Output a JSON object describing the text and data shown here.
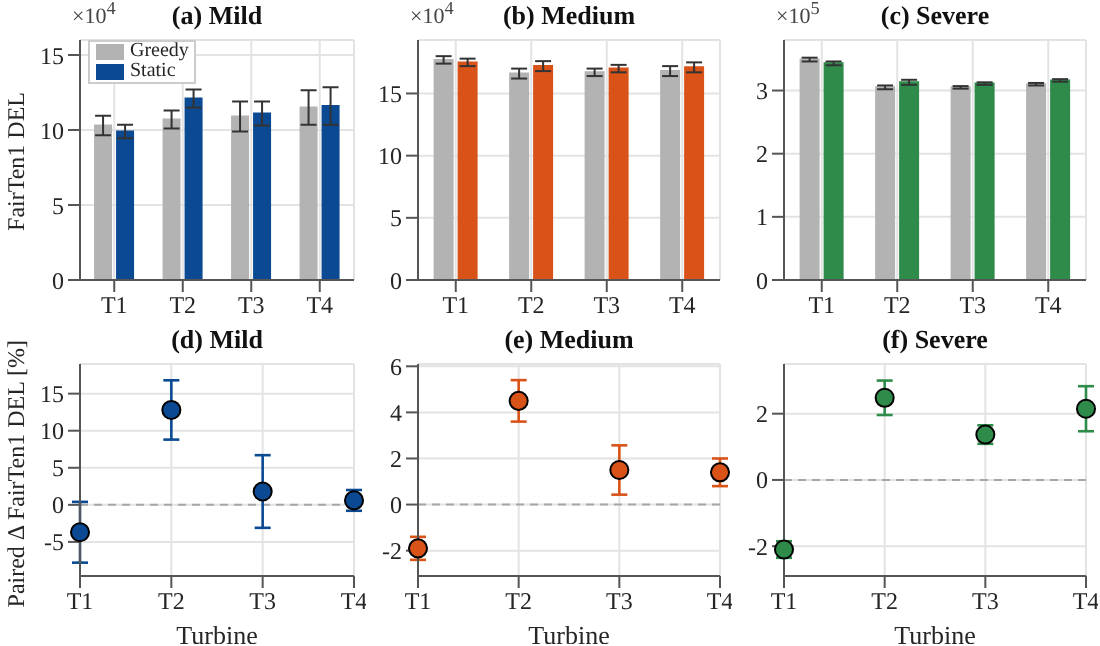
{
  "chart_data": [
    {
      "type": "bar",
      "title": "(a) Mild",
      "ylabel": "FairTen1 DEL",
      "annotations": [
        "×10$^{4}$"
      ],
      "categories": [
        "T1",
        "T2",
        "T3",
        "T4"
      ],
      "ylim": [
        0,
        16
      ],
      "yticks": [
        0,
        5,
        10,
        15
      ],
      "grid": true,
      "legend": "top left",
      "series": [
        {
          "name": "Greedy",
          "color": "#b3b3b3",
          "values": [
            10.3,
            10.7,
            10.9,
            11.5
          ],
          "errors": [
            0.65,
            0.6,
            1.0,
            1.15
          ]
        },
        {
          "name": "Static",
          "color": "#0b4a93",
          "values": [
            9.9,
            12.1,
            11.1,
            11.6
          ],
          "errors": [
            0.45,
            0.6,
            0.8,
            1.25
          ]
        }
      ]
    },
    {
      "type": "bar",
      "title": "(b) Medium",
      "annotations": [
        "×10$^{4}$"
      ],
      "categories": [
        "T1",
        "T2",
        "T3",
        "T4"
      ],
      "ylim": [
        0,
        19.3
      ],
      "yticks": [
        0,
        5,
        10,
        15
      ],
      "grid": true,
      "series": [
        {
          "color": "#b3b3b3",
          "values": [
            17.7,
            16.6,
            16.7,
            16.8
          ],
          "errors": [
            0.3,
            0.4,
            0.3,
            0.4
          ]
        },
        {
          "color": "#d95319",
          "values": [
            17.5,
            17.2,
            17.0,
            17.1
          ],
          "errors": [
            0.3,
            0.4,
            0.3,
            0.4
          ]
        }
      ]
    },
    {
      "type": "bar",
      "title": "(c) Severe",
      "annotations": [
        "×10$^{5}$"
      ],
      "categories": [
        "T1",
        "T2",
        "T3",
        "T4"
      ],
      "ylim": [
        0,
        3.8
      ],
      "yticks": [
        0,
        1,
        2,
        3
      ],
      "grid": true,
      "series": [
        {
          "color": "#b3b3b3",
          "values": [
            3.49,
            3.05,
            3.05,
            3.1
          ],
          "errors": [
            0.03,
            0.03,
            0.02,
            0.02
          ]
        },
        {
          "color": "#2e8b4a",
          "values": [
            3.43,
            3.13,
            3.11,
            3.16
          ],
          "errors": [
            0.03,
            0.04,
            0.02,
            0.02
          ]
        }
      ]
    },
    {
      "type": "scatter",
      "title": "(d) Mild",
      "ylabel": "Paired Δ FairTen1 DEL [%]",
      "xlabel": "Turbine",
      "categories": [
        "T1",
        "T2",
        "T3",
        "T4"
      ],
      "ylim": [
        -9.6,
        19
      ],
      "yticks": [
        -5,
        0,
        5,
        10,
        15
      ],
      "grid": true,
      "marker": "circle",
      "ref_lines": [
        {
          "axis": "y",
          "value": 0,
          "color": "#a6a6a6",
          "line_style": "dashed"
        }
      ],
      "series": [
        {
          "color": "#0b4a93",
          "values": [
            -3.7,
            12.8,
            1.8,
            0.6
          ],
          "errors": [
            4.1,
            4.0,
            4.9,
            1.4
          ]
        }
      ]
    },
    {
      "type": "scatter",
      "title": "(e) Medium",
      "xlabel": "Turbine",
      "categories": [
        "T1",
        "T2",
        "T3",
        "T4"
      ],
      "ylim": [
        -3.1,
        6.1
      ],
      "yticks": [
        -2,
        0,
        2,
        4,
        6
      ],
      "grid": true,
      "marker": "circle",
      "ref_lines": [
        {
          "axis": "y",
          "value": 0,
          "color": "#a6a6a6",
          "line_style": "dashed"
        }
      ],
      "series": [
        {
          "color": "#d95319",
          "values": [
            -1.9,
            4.5,
            1.5,
            1.4
          ],
          "errors": [
            0.5,
            0.9,
            1.07,
            0.6
          ]
        }
      ]
    },
    {
      "type": "scatter",
      "title": "(f) Severe",
      "xlabel": "Turbine",
      "categories": [
        "T1",
        "T2",
        "T3",
        "T4"
      ],
      "ylim": [
        -2.9,
        3.5
      ],
      "yticks": [
        -2,
        0,
        2
      ],
      "grid": true,
      "marker": "circle",
      "ref_lines": [
        {
          "axis": "y",
          "value": 0,
          "color": "#a6a6a6",
          "line_style": "dashed"
        }
      ],
      "series": [
        {
          "color": "#2e8b4a",
          "values": [
            -2.1,
            2.48,
            1.37,
            2.15
          ],
          "errors": [
            0.25,
            0.52,
            0.28,
            0.68
          ]
        }
      ]
    }
  ]
}
